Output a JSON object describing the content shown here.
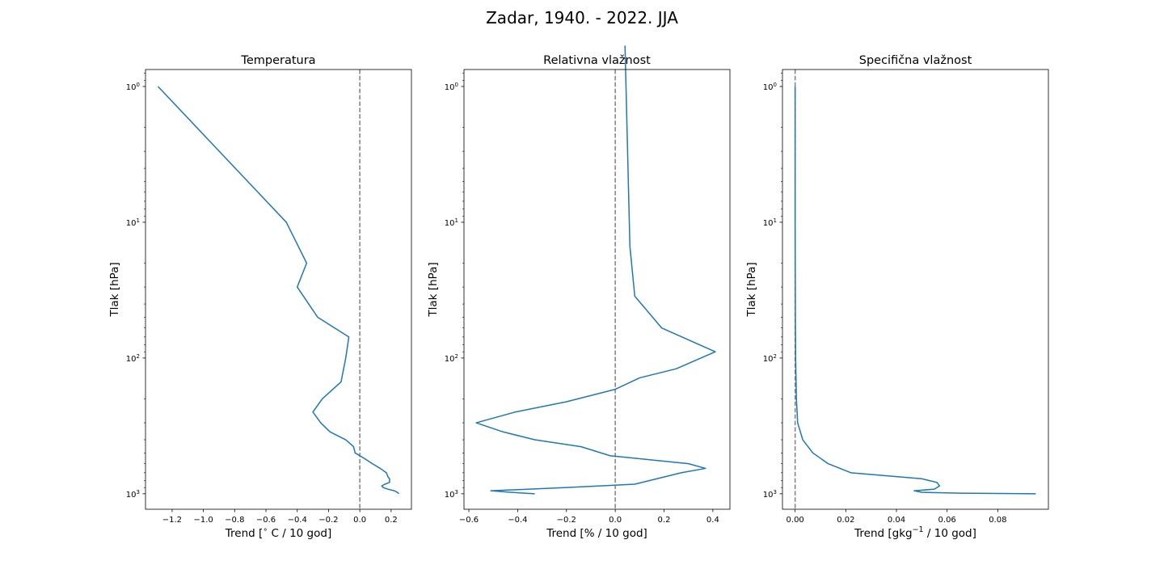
{
  "figure": {
    "suptitle": "Zadar, 1940. - 2022. JJA"
  },
  "chart_data": [
    {
      "type": "line",
      "title": "Temperatura",
      "xlabel": "Trend [$^{\\circ}$ C / 10 god]",
      "xlabel_parts": [
        {
          "t": "Trend ["
        },
        {
          "t": "∘",
          "sup": true
        },
        {
          "t": " C / 10 god]"
        }
      ],
      "ylabel": "Tlak [hPa]",
      "xlim": [
        -1.37,
        0.33
      ],
      "ylim": [
        1300,
        0.75
      ],
      "yscale": "log",
      "xticks": [
        -1.2,
        -1.0,
        -0.8,
        -0.6,
        -0.4,
        -0.2,
        0.0,
        0.2
      ],
      "xticklabels": [
        "−1.2",
        "−1.0",
        "−0.8",
        "−0.6",
        "−0.4",
        "−0.2",
        "0.0",
        "0.2"
      ],
      "yticks": [
        1,
        10,
        100,
        1000
      ],
      "yticklabels": [
        {
          "base": "10",
          "exp": "0"
        },
        {
          "base": "10",
          "exp": "1"
        },
        {
          "base": "10",
          "exp": "2"
        },
        {
          "base": "10",
          "exp": "3"
        }
      ],
      "zero_line": 0,
      "series": [
        {
          "color": "#1f77b4",
          "points": [
            [
              0.25,
              1000
            ],
            [
              0.24,
              975
            ],
            [
              0.22,
              950
            ],
            [
              0.18,
              925
            ],
            [
              0.15,
              900
            ],
            [
              0.14,
              875
            ],
            [
              0.16,
              850
            ],
            [
              0.19,
              825
            ],
            [
              0.19,
              800
            ],
            [
              0.19,
              775
            ],
            [
              0.18,
              750
            ],
            [
              0.17,
              700
            ],
            [
              0.13,
              650
            ],
            [
              0.08,
              600
            ],
            [
              0.03,
              550
            ],
            [
              -0.03,
              500
            ],
            [
              -0.04,
              450
            ],
            [
              -0.09,
              400
            ],
            [
              -0.19,
              350
            ],
            [
              -0.25,
              300
            ],
            [
              -0.3,
              250
            ],
            [
              -0.24,
              200
            ],
            [
              -0.12,
              150
            ],
            [
              -0.09,
              100
            ],
            [
              -0.07,
              70
            ],
            [
              -0.27,
              50
            ],
            [
              -0.4,
              30
            ],
            [
              -0.34,
              20
            ],
            [
              -0.47,
              10
            ],
            [
              -1.29,
              1
            ]
          ]
        }
      ]
    },
    {
      "type": "line",
      "title": "Relativna vlažnost",
      "xlabel": "Trend [% / 10 god]",
      "xlabel_parts": [
        {
          "t": "Trend [% / 10 god]"
        }
      ],
      "ylabel": "Tlak [hPa]",
      "xlim": [
        -0.62,
        0.47
      ],
      "ylim": [
        1300,
        0.75
      ],
      "yscale": "log",
      "xticks": [
        -0.6,
        -0.4,
        -0.2,
        0.0,
        0.2,
        0.4
      ],
      "xticklabels": [
        "−0.6",
        "−0.4",
        "−0.2",
        "0.0",
        "0.2",
        "0.4"
      ],
      "yticks": [
        1,
        10,
        100,
        1000
      ],
      "yticklabels": [
        {
          "base": "10",
          "exp": "0"
        },
        {
          "base": "10",
          "exp": "1"
        },
        {
          "base": "10",
          "exp": "2"
        },
        {
          "base": "10",
          "exp": "3"
        }
      ],
      "zero_line": 0,
      "series": [
        {
          "color": "#1f77b4",
          "points": [
            [
              -0.33,
              1000
            ],
            [
              -0.43,
              975
            ],
            [
              -0.51,
              950
            ],
            [
              -0.2,
              900
            ],
            [
              0.08,
              850
            ],
            [
              0.27,
              700
            ],
            [
              0.37,
              650
            ],
            [
              0.3,
              600
            ],
            [
              -0.02,
              525
            ],
            [
              -0.14,
              450
            ],
            [
              -0.33,
              400
            ],
            [
              -0.46,
              350
            ],
            [
              -0.57,
              300
            ],
            [
              -0.41,
              250
            ],
            [
              -0.2,
              210
            ],
            [
              0.0,
              170
            ],
            [
              0.1,
              140
            ],
            [
              0.25,
              120
            ],
            [
              0.41,
              90
            ],
            [
              0.19,
              60
            ],
            [
              0.08,
              35
            ],
            [
              0.06,
              15
            ],
            [
              0.04,
              0.5
            ]
          ]
        }
      ]
    },
    {
      "type": "line",
      "title": "Specifična vlažnost",
      "xlabel": "Trend [gkg$^{-1}$ / 10 god]",
      "xlabel_parts": [
        {
          "t": "Trend [gkg"
        },
        {
          "t": "−1",
          "sup": true
        },
        {
          "t": " / 10 god]"
        }
      ],
      "ylabel": "Tlak [hPa]",
      "xlim": [
        -0.005,
        0.1
      ],
      "ylim": [
        1300,
        0.75
      ],
      "yscale": "log",
      "xticks": [
        0.0,
        0.02,
        0.04,
        0.06,
        0.08
      ],
      "xticklabels": [
        "0.00",
        "0.02",
        "0.04",
        "0.06",
        "0.08"
      ],
      "yticks": [
        1,
        10,
        100,
        1000
      ],
      "yticklabels": [
        {
          "base": "10",
          "exp": "0"
        },
        {
          "base": "10",
          "exp": "1"
        },
        {
          "base": "10",
          "exp": "2"
        },
        {
          "base": "10",
          "exp": "3"
        }
      ],
      "zero_line": 0,
      "series": [
        {
          "color": "#1f77b4",
          "points": [
            [
              0.095,
              1000
            ],
            [
              0.065,
              990
            ],
            [
              0.05,
              975
            ],
            [
              0.047,
              950
            ],
            [
              0.055,
              925
            ],
            [
              0.057,
              875
            ],
            [
              0.056,
              825
            ],
            [
              0.05,
              775
            ],
            [
              0.022,
              700
            ],
            [
              0.013,
              600
            ],
            [
              0.007,
              500
            ],
            [
              0.003,
              400
            ],
            [
              0.001,
              300
            ],
            [
              0.0005,
              200
            ],
            [
              0.0002,
              100
            ],
            [
              0.0001,
              50
            ],
            [
              0.0,
              10
            ],
            [
              0.0,
              1
            ]
          ]
        }
      ]
    }
  ]
}
